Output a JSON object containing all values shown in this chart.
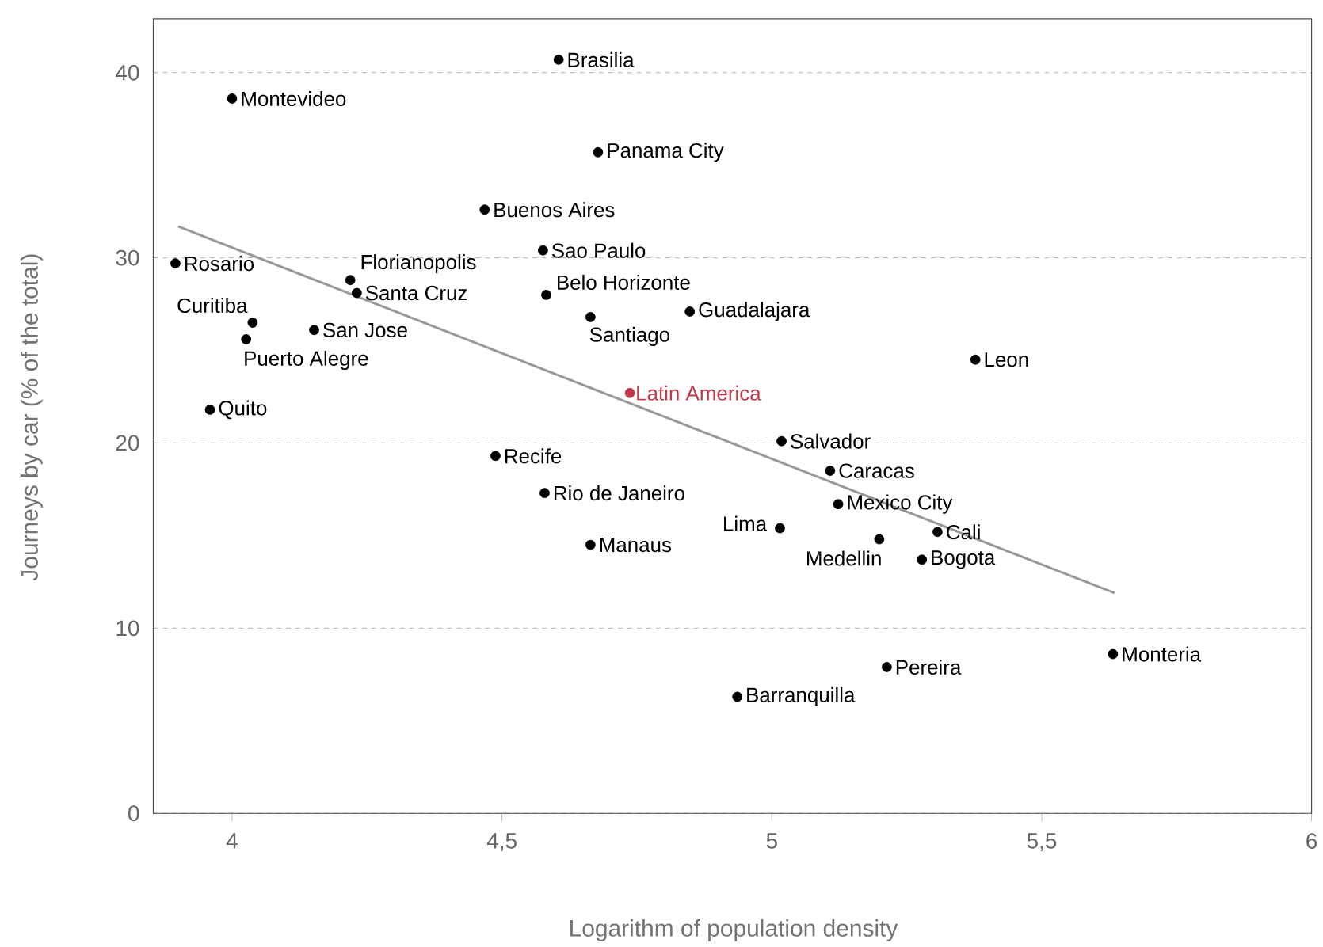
{
  "chart_data": {
    "type": "scatter",
    "xlabel": "Logarithm of population density",
    "ylabel": "Journeys by car (% of the total)",
    "xlim": [
      3.854,
      6
    ],
    "ylim": [
      0,
      42.9
    ],
    "xticks": [
      4,
      {
        "value": 4.5,
        "label": "4,5"
      },
      5,
      {
        "value": 5.5,
        "label": "5,5"
      },
      6
    ],
    "yticks": [
      0,
      10,
      20,
      30,
      40
    ],
    "grid": "y",
    "legend": false,
    "marker": "circle",
    "series": [
      {
        "color": "#000000",
        "x": [
          4.605,
          4.0,
          4.678,
          4.468,
          4.576,
          3.895,
          4.219,
          4.231,
          4.582,
          4.038,
          4.664,
          4.848,
          4.152,
          4.026,
          5.377,
          3.959,
          5.018,
          4.488,
          5.108,
          4.579,
          5.123,
          5.015,
          5.307,
          5.199,
          4.664,
          5.278,
          5.632,
          5.213,
          4.936
        ],
        "values": [
          40.7,
          38.6,
          35.7,
          32.6,
          30.4,
          29.7,
          28.8,
          28.1,
          28.0,
          26.5,
          26.8,
          27.1,
          26.1,
          25.6,
          24.5,
          21.8,
          20.1,
          19.3,
          18.5,
          17.3,
          16.7,
          15.4,
          15.2,
          14.8,
          14.5,
          13.7,
          8.6,
          7.9,
          6.3
        ]
      },
      {
        "name": "Latin America",
        "color": "#c0394b",
        "x": [
          4.737
        ],
        "values": [
          22.7
        ]
      },
      {
        "type": "line",
        "color": "#999999",
        "marker": "none",
        "x": [
          3.9,
          5.635
        ],
        "values": [
          31.7,
          11.9
        ]
      }
    ],
    "annotations": [
      {
        "text": "Brasilia",
        "x": 4.605,
        "y": 40.7
      },
      {
        "text": "Montevideo",
        "x": 4.0,
        "y": 38.6
      },
      {
        "text": "Panama City",
        "x": 4.678,
        "y": 35.7
      },
      {
        "text": "Buenos Aires",
        "x": 4.468,
        "y": 32.6
      },
      {
        "text": "Sao Paulo",
        "x": 4.576,
        "y": 30.4
      },
      {
        "text": "Rosario",
        "x": 3.895,
        "y": 29.7
      },
      {
        "text": "Florianopolis",
        "x": 4.219,
        "y": 28.8
      },
      {
        "text": "Santa Cruz",
        "x": 4.231,
        "y": 28.1
      },
      {
        "text": "Belo Horizonte",
        "x": 4.582,
        "y": 28.0
      },
      {
        "text": "Curitiba",
        "x": 4.038,
        "y": 26.5
      },
      {
        "text": "Santiago",
        "x": 4.664,
        "y": 26.8
      },
      {
        "text": "Guadalajara",
        "x": 4.848,
        "y": 27.1
      },
      {
        "text": "San Jose",
        "x": 4.152,
        "y": 26.1
      },
      {
        "text": "Puerto Alegre",
        "x": 4.026,
        "y": 25.6
      },
      {
        "text": "Leon",
        "x": 5.377,
        "y": 24.5
      },
      {
        "text": "Quito",
        "x": 3.959,
        "y": 21.8
      },
      {
        "text": "Salvador",
        "x": 5.018,
        "y": 20.1
      },
      {
        "text": "Recife",
        "x": 4.488,
        "y": 19.3
      },
      {
        "text": "Caracas",
        "x": 5.108,
        "y": 18.5
      },
      {
        "text": "Rio de Janeiro",
        "x": 4.579,
        "y": 17.3
      },
      {
        "text": "Mexico City",
        "x": 5.123,
        "y": 16.7
      },
      {
        "text": "Lima",
        "x": 5.015,
        "y": 15.4
      },
      {
        "text": "Cali",
        "x": 5.307,
        "y": 15.2
      },
      {
        "text": "Medellin",
        "x": 5.199,
        "y": 14.8
      },
      {
        "text": "Manaus",
        "x": 4.664,
        "y": 14.5
      },
      {
        "text": "Bogota",
        "x": 5.278,
        "y": 13.7
      },
      {
        "text": "Monteria",
        "x": 5.632,
        "y": 8.6
      },
      {
        "text": "Pereira",
        "x": 5.213,
        "y": 7.9
      },
      {
        "text": "Barranquilla",
        "x": 4.936,
        "y": 6.3
      }
    ]
  }
}
